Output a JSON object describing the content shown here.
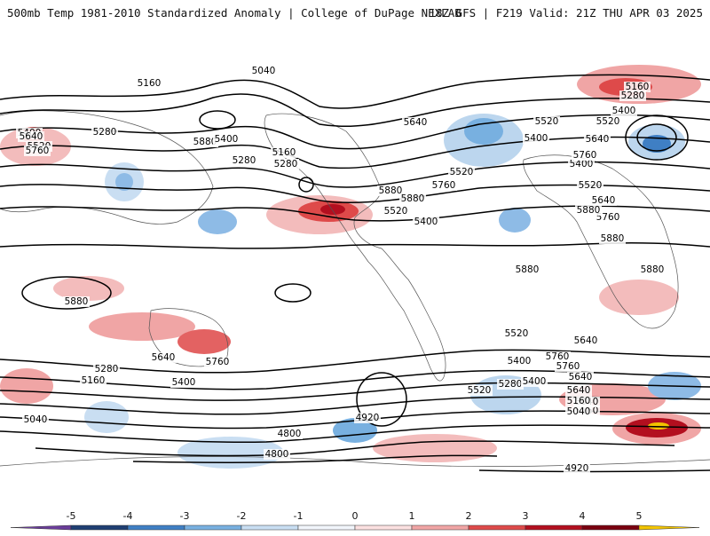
{
  "header": {
    "left": "500mb Temp 1981-2010 Standardized Anomaly | College of DuPage NEXLAB",
    "right": "18Z GFS | F219 Valid: 21Z THU APR 03 2025"
  },
  "contour_labels": [
    "5040",
    "5160",
    "5280",
    "5400",
    "5520",
    "5640",
    "5760",
    "5880",
    "5160",
    "5280",
    "5520",
    "5400",
    "5400",
    "5520",
    "5640",
    "5760",
    "5880",
    "5280",
    "5400",
    "5520",
    "5640",
    "5760",
    "5880",
    "5880",
    "5400",
    "5520",
    "5160",
    "5280",
    "5400",
    "5520",
    "5640",
    "5760",
    "5880",
    "5880",
    "5880",
    "5880",
    "5640",
    "5760",
    "5400",
    "5280",
    "5160",
    "5040",
    "4920",
    "4800",
    "4800",
    "5760",
    "5640",
    "5400",
    "5520",
    "5280",
    "5160",
    "5040",
    "4920",
    "5520",
    "5640",
    "5760",
    "5640",
    "5400",
    "5160",
    "5040"
  ],
  "legend": {
    "ticks": [
      "-5",
      "-4",
      "-3",
      "-2",
      "-1",
      "0",
      "1",
      "2",
      "3",
      "4",
      "5"
    ],
    "colors": [
      "#6a3d9a",
      "#1f3f73",
      "#3f7fc4",
      "#78b0e0",
      "#c9def2",
      "#f1f5fb",
      "#fbe0e0",
      "#f0a5a5",
      "#de4a4a",
      "#b30f1f",
      "#7a0010",
      "#f2c400"
    ]
  }
}
